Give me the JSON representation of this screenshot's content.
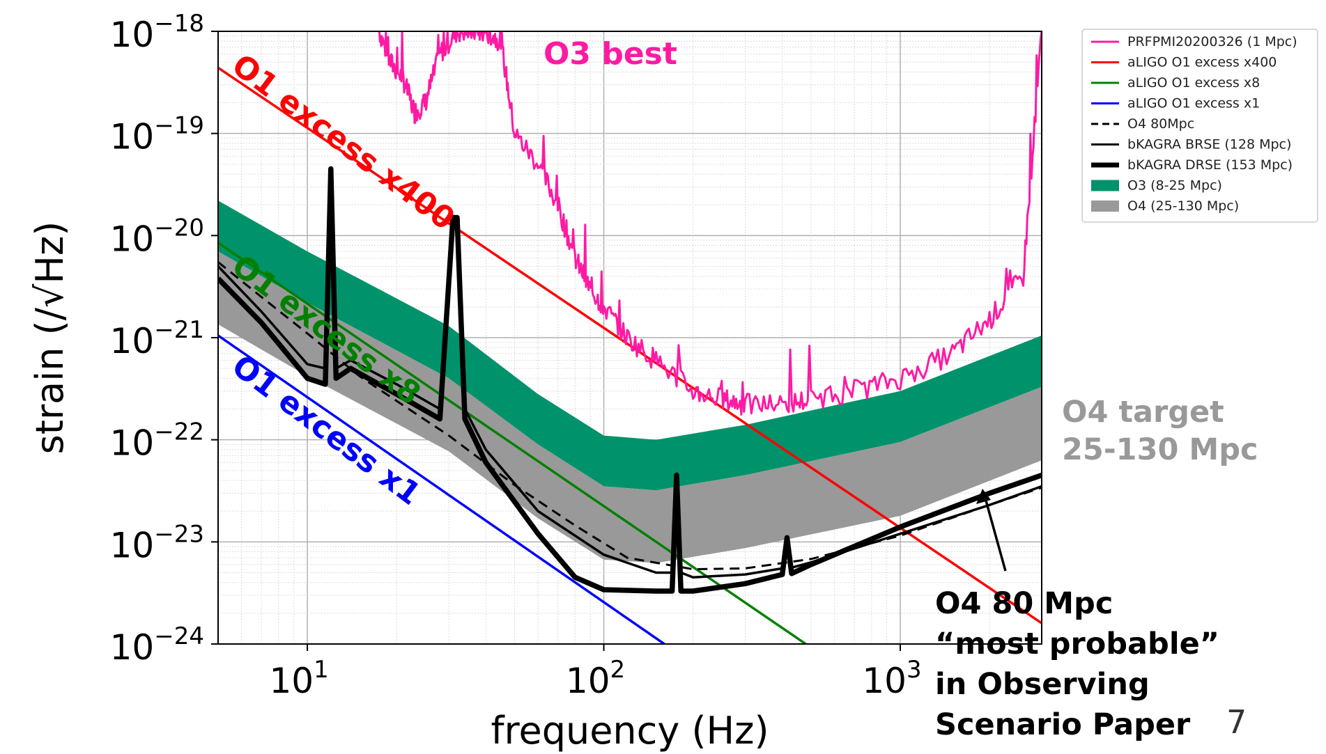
{
  "chart_data": {
    "type": "line",
    "xlabel": "frequency (Hz)",
    "ylabel": "strain (/√Hz)",
    "x_scale": "log",
    "y_scale": "log",
    "xlim": [
      5,
      3000
    ],
    "ylim": [
      1e-24,
      1e-18
    ],
    "grid": true,
    "x_ticks": [
      {
        "value": 10,
        "base": "10",
        "exp": "1"
      },
      {
        "value": 100,
        "base": "10",
        "exp": "2"
      },
      {
        "value": 1000,
        "base": "10",
        "exp": "3"
      }
    ],
    "y_ticks": [
      {
        "value": 1e-18,
        "base": "10",
        "exp": "−18"
      },
      {
        "value": 1e-19,
        "base": "10",
        "exp": "−19"
      },
      {
        "value": 1e-20,
        "base": "10",
        "exp": "−20"
      },
      {
        "value": 1e-21,
        "base": "10",
        "exp": "−21"
      },
      {
        "value": 1e-22,
        "base": "10",
        "exp": "−22"
      },
      {
        "value": 1e-23,
        "base": "10",
        "exp": "−23"
      },
      {
        "value": 1e-24,
        "base": "10",
        "exp": "−24"
      }
    ],
    "legend_position": "outside top-right",
    "legend": [
      {
        "label": "PRFPMI20200326 (1 Mpc)",
        "color": "#ff1aa3",
        "style": "line"
      },
      {
        "label": "aLIGO O1 excess x400",
        "color": "#ff0000",
        "style": "line"
      },
      {
        "label": "aLIGO O1 excess x8",
        "color": "#008000",
        "style": "line"
      },
      {
        "label": "aLIGO O1 excess x1",
        "color": "#0000ff",
        "style": "line"
      },
      {
        "label": "O4 80Mpc",
        "color": "#000000",
        "style": "dashed"
      },
      {
        "label": "bKAGRA BRSE (128 Mpc)",
        "color": "#000000",
        "style": "line"
      },
      {
        "label": "bKAGRA DRSE (153 Mpc)",
        "color": "#000000",
        "style": "thick"
      },
      {
        "label": "O3 (8-25 Mpc)",
        "color": "#00936b",
        "style": "patch"
      },
      {
        "label": "O4 (25-130 Mpc)",
        "color": "#999999",
        "style": "patch"
      }
    ],
    "series": [
      {
        "name": "aLIGO O1 excess x400",
        "color": "#ff0000",
        "x": [
          5,
          3000
        ],
        "y": [
          4.4e-19,
          1.6e-24
        ]
      },
      {
        "name": "aLIGO O1 excess x8",
        "color": "#008000",
        "x": [
          5,
          480
        ],
        "y": [
          8.5e-21,
          1e-24
        ]
      },
      {
        "name": "aLIGO O1 excess x1",
        "color": "#0000ff",
        "x": [
          5,
          160
        ],
        "y": [
          1.05e-21,
          1e-24
        ]
      },
      {
        "name": "O4 80Mpc",
        "color": "#000000",
        "dash": true,
        "x": [
          5,
          7,
          10,
          15,
          20,
          30,
          50,
          80,
          120,
          200,
          300,
          500,
          1000,
          2000,
          3000
        ],
        "y": [
          5.5e-21,
          2.5e-21,
          1.1e-21,
          4.2e-22,
          2.4e-22,
          1.1e-22,
          3.6e-23,
          1.45e-23,
          7e-24,
          5.4e-24,
          5.5e-24,
          6.8e-24,
          1.15e-23,
          2.3e-23,
          3.4e-23
        ]
      },
      {
        "name": "bKAGRA BRSE (128 Mpc)",
        "color": "#000000",
        "x": [
          5,
          7,
          10,
          11.5,
          12,
          12.5,
          14,
          20,
          28,
          31,
          32,
          34,
          40,
          60,
          100,
          150,
          170,
          176,
          182,
          200,
          300,
          400,
          415,
          430,
          500,
          1000,
          2000,
          3000
        ],
        "y": [
          5e-21,
          1.8e-21,
          5.5e-22,
          5e-22,
          4.5e-20,
          5e-22,
          6e-22,
          3.5e-22,
          2e-22,
          1.5e-20,
          1.5e-20,
          2e-22,
          8e-23,
          2e-23,
          7.5e-24,
          5e-24,
          5e-24,
          4.5e-23,
          5e-24,
          4.5e-24,
          4.8e-24,
          5.5e-24,
          1.1e-23,
          5.6e-24,
          6.3e-24,
          1.2e-23,
          2.3e-23,
          3.5e-23
        ]
      },
      {
        "name": "bKAGRA DRSE (153 Mpc)",
        "color": "#000000",
        "thick": true,
        "x": [
          5,
          7,
          10,
          11.5,
          12,
          12.5,
          14,
          20,
          28,
          31,
          32,
          34,
          40,
          60,
          80,
          100,
          150,
          170,
          176,
          182,
          200,
          300,
          400,
          415,
          430,
          500,
          1000,
          2000,
          3000
        ],
        "y": [
          3.8e-21,
          1.4e-21,
          4e-22,
          3.5e-22,
          4.5e-20,
          4e-22,
          5e-22,
          2.8e-22,
          1.6e-22,
          1.5e-20,
          1.5e-20,
          1.6e-22,
          6e-23,
          1.2e-23,
          4.5e-24,
          3.4e-24,
          3.3e-24,
          3.3e-24,
          4.5e-23,
          3.3e-24,
          3.3e-24,
          3.9e-24,
          4.8e-24,
          1.1e-23,
          4.9e-24,
          6e-24,
          1.4e-23,
          3e-23,
          4.5e-23
        ]
      },
      {
        "name": "PRFPMI20200326 (1 Mpc)",
        "color": "#ff1aa3",
        "x": [
          17.5,
          19,
          21,
          23,
          25,
          28,
          32,
          36,
          40,
          45,
          50,
          60,
          70,
          80,
          90,
          100,
          120,
          150,
          200,
          250,
          300,
          400,
          500,
          700,
          1000,
          1500,
          2000,
          2600,
          3000
        ],
        "y": [
          1e-18,
          5e-19,
          3.5e-19,
          1.6e-19,
          2e-19,
          6e-19,
          1e-18,
          1e-18,
          1e-18,
          8e-19,
          1e-19,
          5e-20,
          2e-20,
          6e-21,
          3e-21,
          2e-21,
          1e-21,
          6e-22,
          3e-22,
          2.5e-22,
          2.2e-22,
          2.2e-22,
          2.5e-22,
          3e-22,
          4e-22,
          7e-22,
          1.5e-21,
          4e-21,
          1e-18
        ]
      }
    ],
    "bands": [
      {
        "name": "O3 (8-25 Mpc)",
        "color": "#00936b",
        "x": [
          5,
          10,
          30,
          60,
          100,
          150,
          300,
          1000,
          3000
        ],
        "upper": [
          2.2e-20,
          7e-21,
          1.3e-21,
          2.8e-22,
          1.1e-22,
          1e-22,
          1.4e-22,
          3e-22,
          1.05e-21
        ],
        "lower": [
          7e-21,
          2.2e-21,
          4e-22,
          9e-23,
          3.5e-23,
          3.2e-23,
          4.5e-23,
          9.5e-23,
          3.3e-22
        ]
      },
      {
        "name": "O4 (25-130 Mpc)",
        "color": "#999999",
        "x": [
          5,
          10,
          30,
          60,
          100,
          150,
          300,
          1000,
          3000
        ],
        "upper": [
          7e-21,
          2.2e-21,
          4e-22,
          9e-23,
          3.5e-23,
          3.2e-23,
          4.5e-23,
          9.5e-23,
          3.3e-22
        ],
        "lower": [
          1.35e-21,
          4.2e-22,
          7.7e-23,
          1.7e-23,
          6.7e-24,
          6.2e-24,
          8.7e-24,
          1.8e-23,
          6.3e-23
        ]
      }
    ],
    "annotations": [
      {
        "text": "O3 best",
        "color": "#ff1aa3"
      },
      {
        "text": "O1 excess x400",
        "color": "#ff0000"
      },
      {
        "text": "O1 excess x8",
        "color": "#008000"
      },
      {
        "text": "O1 excess x1",
        "color": "#0000ff"
      }
    ]
  },
  "side_notes": {
    "o4_target_line1": "O4 target",
    "o4_target_line2": "25-130 Mpc",
    "o4_80_lines": [
      "O4 80 Mpc",
      "“most probable”",
      "in Observing",
      "Scenario Paper"
    ]
  },
  "page_number": "7"
}
